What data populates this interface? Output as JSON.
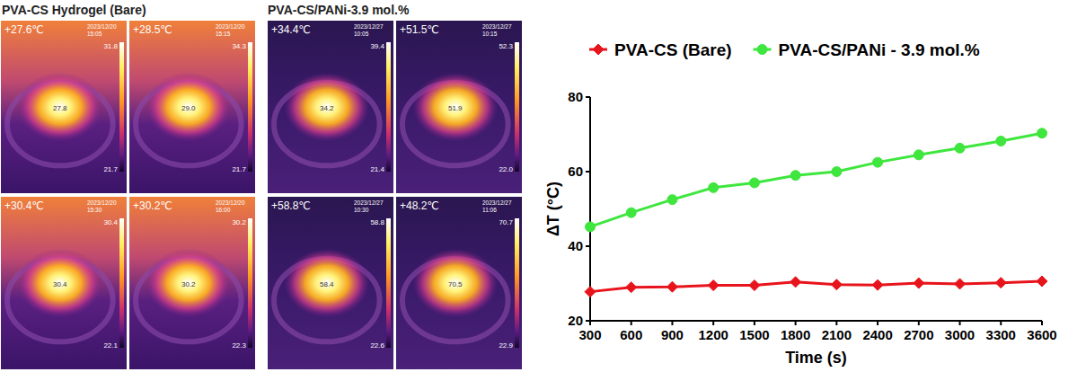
{
  "chart_data": {
    "type": "line",
    "x": [
      300,
      600,
      900,
      1200,
      1500,
      1800,
      2100,
      2400,
      2700,
      3000,
      3300,
      3600
    ],
    "x_label": "Time (s)",
    "y_label": "ΔT (°C)",
    "xlim": [
      300,
      3600
    ],
    "xticks": [
      300,
      600,
      900,
      1200,
      1500,
      1800,
      2100,
      2400,
      2700,
      3000,
      3300,
      3600
    ],
    "ylim": [
      20,
      80
    ],
    "yticks": [
      20,
      40,
      60,
      80
    ],
    "grid": false,
    "legend": "top",
    "series": [
      {
        "name": "PVA-CS (Bare)",
        "color": "#e8141c",
        "marker": "diamond",
        "line_style": "solid",
        "values": [
          27.8,
          29.0,
          29.1,
          29.5,
          29.5,
          30.4,
          29.7,
          29.6,
          30.1,
          29.9,
          30.2,
          30.6
        ]
      },
      {
        "name": "PVA-CS/PANi - 3.9 mol.%",
        "color": "#3ee63e",
        "marker": "circle",
        "line_style": "solid",
        "values": [
          45.2,
          49.0,
          52.5,
          55.7,
          57.0,
          59.0,
          60.0,
          62.5,
          64.5,
          66.3,
          68.2,
          70.3
        ]
      }
    ]
  },
  "thermal_figure": {
    "headers": [
      "PVA-CS Hydrogel (Bare)",
      "PVA-CS/PANi-3.9 mol.%"
    ],
    "images": [
      {
        "reading": "+27.6℃",
        "date": "2023/12/20",
        "time": "15:05",
        "scale_max": "31.8",
        "scale_min": "21.7",
        "spot": "27.8"
      },
      {
        "reading": "+28.5℃",
        "date": "2023/12/20",
        "time": "15:15",
        "scale_max": "34.3",
        "scale_min": "21.7",
        "spot": "29.0"
      },
      {
        "reading": "+34.4℃",
        "date": "2023/12/27",
        "time": "10:05",
        "scale_max": "39.4",
        "scale_min": "21.4",
        "spot": "34.2"
      },
      {
        "reading": "+51.5℃",
        "date": "2023/12/27",
        "time": "10:15",
        "scale_max": "52.3",
        "scale_min": "22.0",
        "spot": "51.9"
      },
      {
        "reading": "+30.4℃",
        "date": "2023/12/20",
        "time": "15:30",
        "scale_max": "30.4",
        "scale_min": "22.1",
        "spot": "30.4"
      },
      {
        "reading": "+30.2℃",
        "date": "2023/12/20",
        "time": "16:00",
        "scale_max": "30.2",
        "scale_min": "22.3",
        "spot": "30.2"
      },
      {
        "reading": "+58.8℃",
        "date": "2023/12/27",
        "time": "10:30",
        "scale_max": "58.8",
        "scale_min": "22.6",
        "spot": "58.4"
      },
      {
        "reading": "+48.2℃",
        "date": "2023/12/27",
        "time": "11:06",
        "scale_max": "70.7",
        "scale_min": "22.9",
        "spot": "70.5"
      }
    ]
  }
}
